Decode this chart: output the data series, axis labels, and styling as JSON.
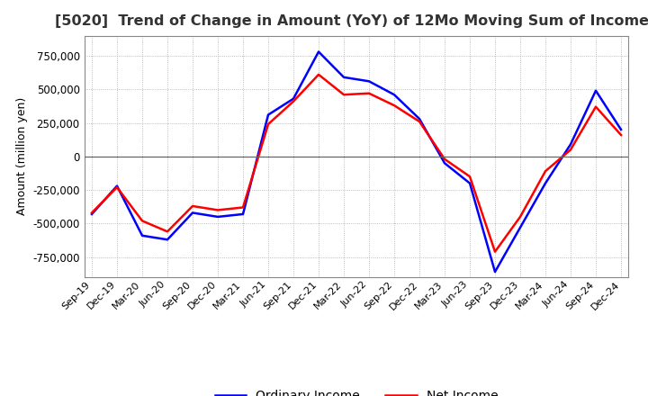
{
  "title": "[5020]  Trend of Change in Amount (YoY) of 12Mo Moving Sum of Incomes",
  "ylabel": "Amount (million yen)",
  "background_color": "#ffffff",
  "grid_color": "#aaaaaa",
  "ordinary_income_color": "#0000ff",
  "net_income_color": "#ff0000",
  "ylim": [
    -900000,
    900000
  ],
  "yticks": [
    -750000,
    -500000,
    -250000,
    0,
    250000,
    500000,
    750000
  ],
  "dates": [
    "Sep-19",
    "Dec-19",
    "Mar-20",
    "Jun-20",
    "Sep-20",
    "Dec-20",
    "Mar-21",
    "Jun-21",
    "Sep-21",
    "Dec-21",
    "Mar-22",
    "Jun-22",
    "Sep-22",
    "Dec-22",
    "Mar-23",
    "Jun-23",
    "Sep-23",
    "Dec-23",
    "Mar-24",
    "Jun-24",
    "Sep-24",
    "Dec-24"
  ],
  "ordinary_income": [
    -430000,
    -220000,
    -590000,
    -620000,
    -420000,
    -450000,
    -430000,
    310000,
    430000,
    780000,
    590000,
    560000,
    460000,
    280000,
    -50000,
    -200000,
    -860000,
    -530000,
    -200000,
    90000,
    490000,
    200000
  ],
  "net_income": [
    -420000,
    -230000,
    -480000,
    -560000,
    -370000,
    -400000,
    -380000,
    240000,
    410000,
    610000,
    460000,
    470000,
    380000,
    260000,
    -20000,
    -150000,
    -710000,
    -450000,
    -110000,
    50000,
    370000,
    160000
  ]
}
